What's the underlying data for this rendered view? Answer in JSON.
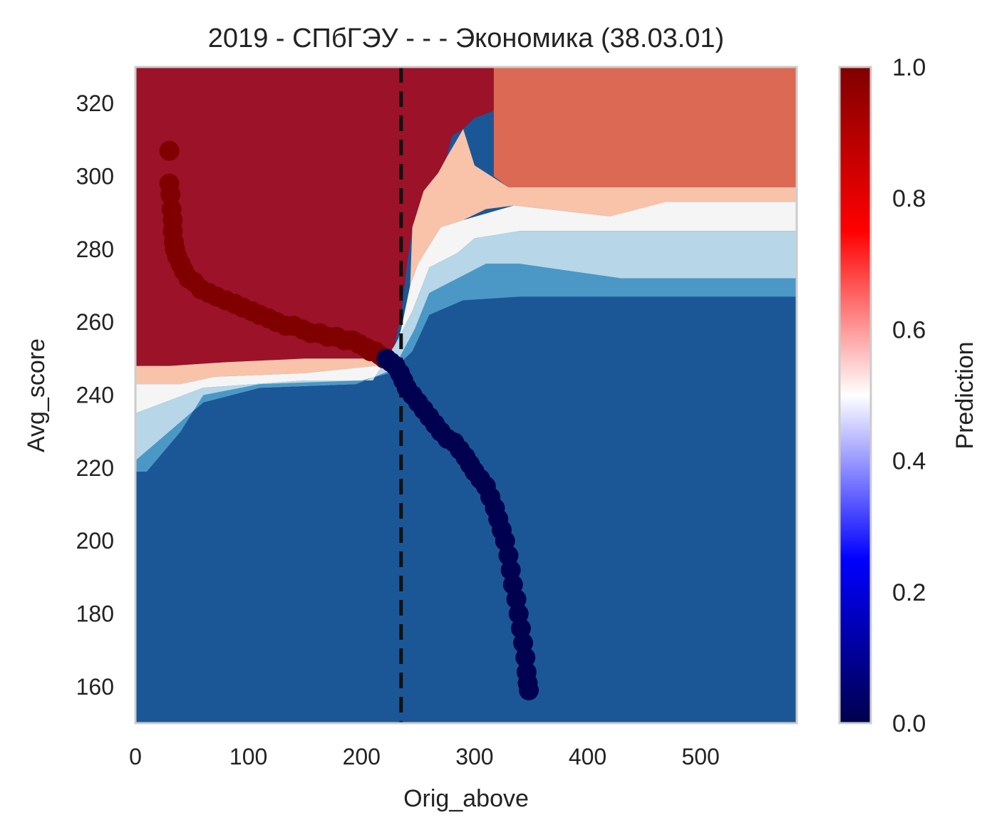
{
  "chart_data": {
    "type": "heatmap",
    "title": "2019 - СПбГЭУ - - - Экономика (38.03.01)",
    "xlabel": "Orig_above",
    "ylabel": "Avg_score",
    "xlim": [
      0,
      585
    ],
    "ylim": [
      150,
      330
    ],
    "x_ticks": [
      0,
      100,
      200,
      300,
      400,
      500
    ],
    "y_ticks": [
      160,
      180,
      200,
      220,
      240,
      260,
      280,
      300,
      320
    ],
    "grid": false,
    "threshold_line": {
      "x": 235,
      "style": "dashed",
      "color": "#111111"
    },
    "colorbar": {
      "label": "Prediction",
      "range": [
        0.0,
        1.0
      ],
      "ticks": [
        "0.0",
        "0.2",
        "0.4",
        "0.6",
        "0.8",
        "1.0"
      ],
      "colormap": "seismic"
    },
    "prediction_levels": [
      {
        "value": 0.1,
        "color": "#1b5796"
      },
      {
        "value": 0.3,
        "color": "#4b98c6"
      },
      {
        "value": 0.45,
        "color": "#b7d6e8"
      },
      {
        "value": 0.5,
        "color": "#f5f5f5"
      },
      {
        "value": 0.6,
        "color": "#f8c3a9"
      },
      {
        "value": 0.75,
        "color": "#db6954"
      },
      {
        "value": 0.95,
        "color": "#9b1229"
      }
    ],
    "regions": [
      {
        "name": "upper-left-region",
        "prediction": 0.95,
        "description_points": [
          [
            0,
            330
          ],
          [
            317,
            330
          ],
          [
            317,
            318
          ],
          [
            300,
            316
          ],
          [
            290,
            313
          ],
          [
            280,
            311
          ],
          [
            275,
            305
          ],
          [
            268,
            301
          ],
          [
            255,
            296
          ],
          [
            245,
            286
          ],
          [
            240,
            275
          ],
          [
            235,
            262
          ],
          [
            228,
            252
          ],
          [
            215,
            250
          ],
          [
            150,
            250
          ],
          [
            80,
            249
          ],
          [
            30,
            248
          ],
          [
            0,
            248
          ]
        ]
      },
      {
        "name": "upper-right-region",
        "prediction": 0.75,
        "description_points": [
          [
            317,
            330
          ],
          [
            585,
            330
          ],
          [
            585,
            297
          ],
          [
            330,
            297
          ],
          [
            317,
            300
          ]
        ]
      },
      {
        "name": "band-0.60-left",
        "prediction": 0.6,
        "description_points": [
          [
            0,
            248
          ],
          [
            30,
            248
          ],
          [
            80,
            249
          ],
          [
            150,
            250
          ],
          [
            215,
            250
          ],
          [
            228,
            252
          ],
          [
            212,
            248
          ],
          [
            150,
            246
          ],
          [
            70,
            245
          ],
          [
            40,
            243
          ],
          [
            0,
            243
          ]
        ]
      },
      {
        "name": "band-0.60-right",
        "prediction": 0.6,
        "description_points": [
          [
            245,
            286
          ],
          [
            255,
            296
          ],
          [
            268,
            301
          ],
          [
            275,
            305
          ],
          [
            290,
            313
          ],
          [
            300,
            303
          ],
          [
            330,
            297
          ],
          [
            585,
            297
          ],
          [
            585,
            293
          ],
          [
            470,
            293
          ],
          [
            460,
            289
          ],
          [
            420,
            289
          ],
          [
            335,
            292
          ],
          [
            310,
            291
          ],
          [
            290,
            288
          ],
          [
            270,
            286
          ],
          [
            260,
            281
          ],
          [
            250,
            276
          ],
          [
            243,
            270
          ]
        ]
      },
      {
        "name": "band-0.50",
        "prediction": 0.5,
        "description_points": [
          [
            0,
            243
          ],
          [
            40,
            243
          ],
          [
            70,
            245
          ],
          [
            150,
            246
          ],
          [
            212,
            248
          ],
          [
            228,
            251
          ],
          [
            235,
            258
          ],
          [
            243,
            270
          ],
          [
            250,
            276
          ],
          [
            260,
            281
          ],
          [
            270,
            286
          ],
          [
            290,
            288
          ],
          [
            335,
            292
          ],
          [
            420,
            289
          ],
          [
            470,
            293
          ],
          [
            585,
            293
          ],
          [
            585,
            285
          ],
          [
            340,
            285
          ],
          [
            300,
            283
          ],
          [
            285,
            279
          ],
          [
            260,
            275
          ],
          [
            245,
            263
          ],
          [
            230,
            254
          ],
          [
            210,
            244
          ],
          [
            150,
            244
          ],
          [
            60,
            242
          ],
          [
            0,
            235
          ]
        ]
      },
      {
        "name": "band-0.45",
        "prediction": 0.45,
        "description_points": [
          [
            0,
            235
          ],
          [
            60,
            242
          ],
          [
            150,
            244
          ],
          [
            210,
            244
          ],
          [
            230,
            254
          ],
          [
            245,
            263
          ],
          [
            260,
            275
          ],
          [
            285,
            279
          ],
          [
            300,
            283
          ],
          [
            340,
            285
          ],
          [
            585,
            285
          ],
          [
            585,
            272
          ],
          [
            430,
            272
          ],
          [
            340,
            276
          ],
          [
            310,
            276
          ],
          [
            285,
            272
          ],
          [
            260,
            268
          ],
          [
            247,
            258
          ],
          [
            228,
            247
          ],
          [
            195,
            243
          ],
          [
            110,
            242
          ],
          [
            60,
            238
          ],
          [
            30,
            230
          ],
          [
            0,
            222
          ]
        ]
      },
      {
        "name": "band-0.30",
        "prediction": 0.3,
        "description_points": [
          [
            0,
            222
          ],
          [
            30,
            230
          ],
          [
            60,
            238
          ],
          [
            110,
            242
          ],
          [
            195,
            243
          ],
          [
            228,
            247
          ],
          [
            247,
            258
          ],
          [
            260,
            268
          ],
          [
            285,
            272
          ],
          [
            310,
            276
          ],
          [
            340,
            276
          ],
          [
            430,
            272
          ],
          [
            585,
            272
          ],
          [
            585,
            267
          ],
          [
            340,
            267
          ],
          [
            290,
            266
          ],
          [
            260,
            262
          ],
          [
            245,
            252
          ],
          [
            225,
            246
          ],
          [
            200,
            244
          ],
          [
            110,
            243
          ],
          [
            60,
            240
          ],
          [
            40,
            230
          ],
          [
            10,
            219
          ],
          [
            0,
            219
          ]
        ]
      }
    ],
    "series": [
      {
        "label_class": "1",
        "color": "#800000",
        "points": [
          [
            30,
            307
          ],
          [
            30,
            298
          ],
          [
            31,
            295
          ],
          [
            32,
            291
          ],
          [
            33,
            288
          ],
          [
            33,
            285
          ],
          [
            34,
            282
          ],
          [
            35,
            280
          ],
          [
            37,
            278
          ],
          [
            40,
            276
          ],
          [
            43,
            274
          ],
          [
            47,
            272
          ],
          [
            52,
            271
          ],
          [
            58,
            269
          ],
          [
            65,
            268
          ],
          [
            72,
            267
          ],
          [
            80,
            266
          ],
          [
            88,
            265
          ],
          [
            95,
            264
          ],
          [
            103,
            263
          ],
          [
            110,
            262
          ],
          [
            118,
            261
          ],
          [
            125,
            260
          ],
          [
            133,
            259
          ],
          [
            140,
            259
          ],
          [
            148,
            258
          ],
          [
            155,
            257
          ],
          [
            163,
            257
          ],
          [
            170,
            256
          ],
          [
            178,
            256
          ],
          [
            185,
            255
          ],
          [
            192,
            255
          ],
          [
            198,
            254
          ],
          [
            204,
            253
          ],
          [
            208,
            252
          ],
          [
            212,
            252
          ],
          [
            216,
            251
          ],
          [
            220,
            250
          ]
        ]
      },
      {
        "label_class": "0",
        "color": "#000050",
        "points": [
          [
            222,
            250
          ],
          [
            226,
            249
          ],
          [
            230,
            248
          ],
          [
            234,
            246
          ],
          [
            237,
            244
          ],
          [
            240,
            242
          ],
          [
            245,
            240
          ],
          [
            250,
            238
          ],
          [
            255,
            236
          ],
          [
            260,
            234
          ],
          [
            265,
            232
          ],
          [
            270,
            230
          ],
          [
            276,
            228
          ],
          [
            282,
            227
          ],
          [
            287,
            225
          ],
          [
            292,
            223
          ],
          [
            296,
            221
          ],
          [
            300,
            219
          ],
          [
            305,
            217
          ],
          [
            310,
            215
          ],
          [
            314,
            212
          ],
          [
            318,
            209
          ],
          [
            321,
            206
          ],
          [
            324,
            203
          ],
          [
            327,
            200
          ],
          [
            330,
            196
          ],
          [
            332,
            192
          ],
          [
            334,
            188
          ],
          [
            337,
            184
          ],
          [
            339,
            180
          ],
          [
            341,
            176
          ],
          [
            343,
            172
          ],
          [
            345,
            168
          ],
          [
            346,
            164
          ],
          [
            347,
            161
          ],
          [
            348,
            159
          ]
        ]
      }
    ]
  }
}
